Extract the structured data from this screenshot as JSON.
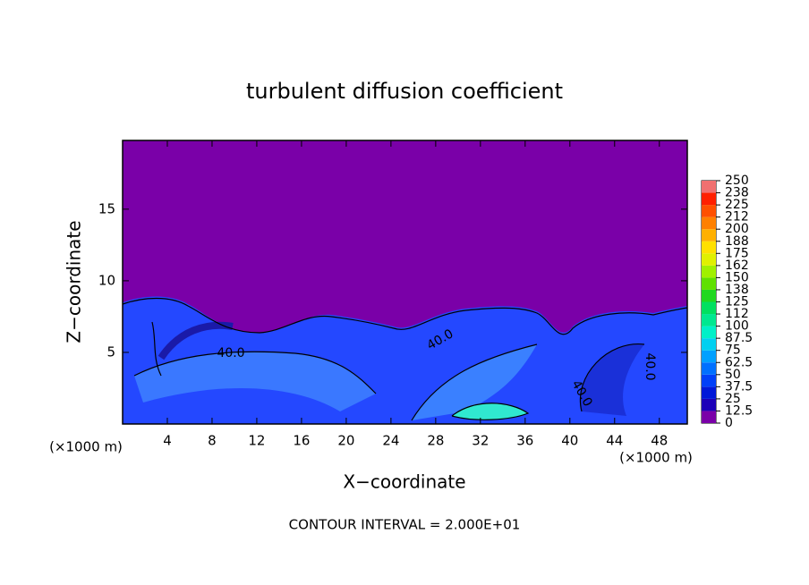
{
  "chart_data": {
    "type": "contour",
    "title": "turbulent diffusion coefficient",
    "xlabel": "X−coordinate",
    "ylabel": "Z−coordinate",
    "x_unit": "(×1000 m)",
    "y_unit": "(×1000 m)",
    "xlim": [
      0,
      50.5
    ],
    "ylim": [
      0,
      19.8
    ],
    "xticks": [
      4,
      8,
      12,
      16,
      20,
      24,
      28,
      32,
      36,
      40,
      44,
      48
    ],
    "yticks": [
      5,
      10,
      15
    ],
    "contour_labels": [
      "40.0",
      "40.0",
      "40.0",
      "40.0"
    ],
    "note": "CONTOUR INTERVAL = 2.000E+01",
    "colorbar": {
      "ticks": [
        0,
        12.5,
        25,
        37.5,
        50,
        62.5,
        75,
        87.5,
        100,
        {
          "value": 112.5,
          "label": "112"
        },
        125,
        {
          "value": 137.5,
          "label": "138"
        },
        150,
        {
          "value": 162.5,
          "label": "162"
        },
        175,
        {
          "value": 187.5,
          "label": "188"
        },
        200,
        {
          "value": 212.5,
          "label": "212"
        },
        225,
        {
          "value": 237.5,
          "label": "238"
        },
        250
      ],
      "colors": [
        "#7a00a8",
        "#1c00b8",
        "#0018d8",
        "#0040f8",
        "#0070ff",
        "#00a0ff",
        "#00d0f0",
        "#00f0c8",
        "#00e890",
        "#00e060",
        "#20d820",
        "#60e000",
        "#a0f000",
        "#e0f000",
        "#ffe000",
        "#ffb000",
        "#ff8000",
        "#ff5000",
        "#ff2000",
        "#f07070"
      ]
    }
  }
}
